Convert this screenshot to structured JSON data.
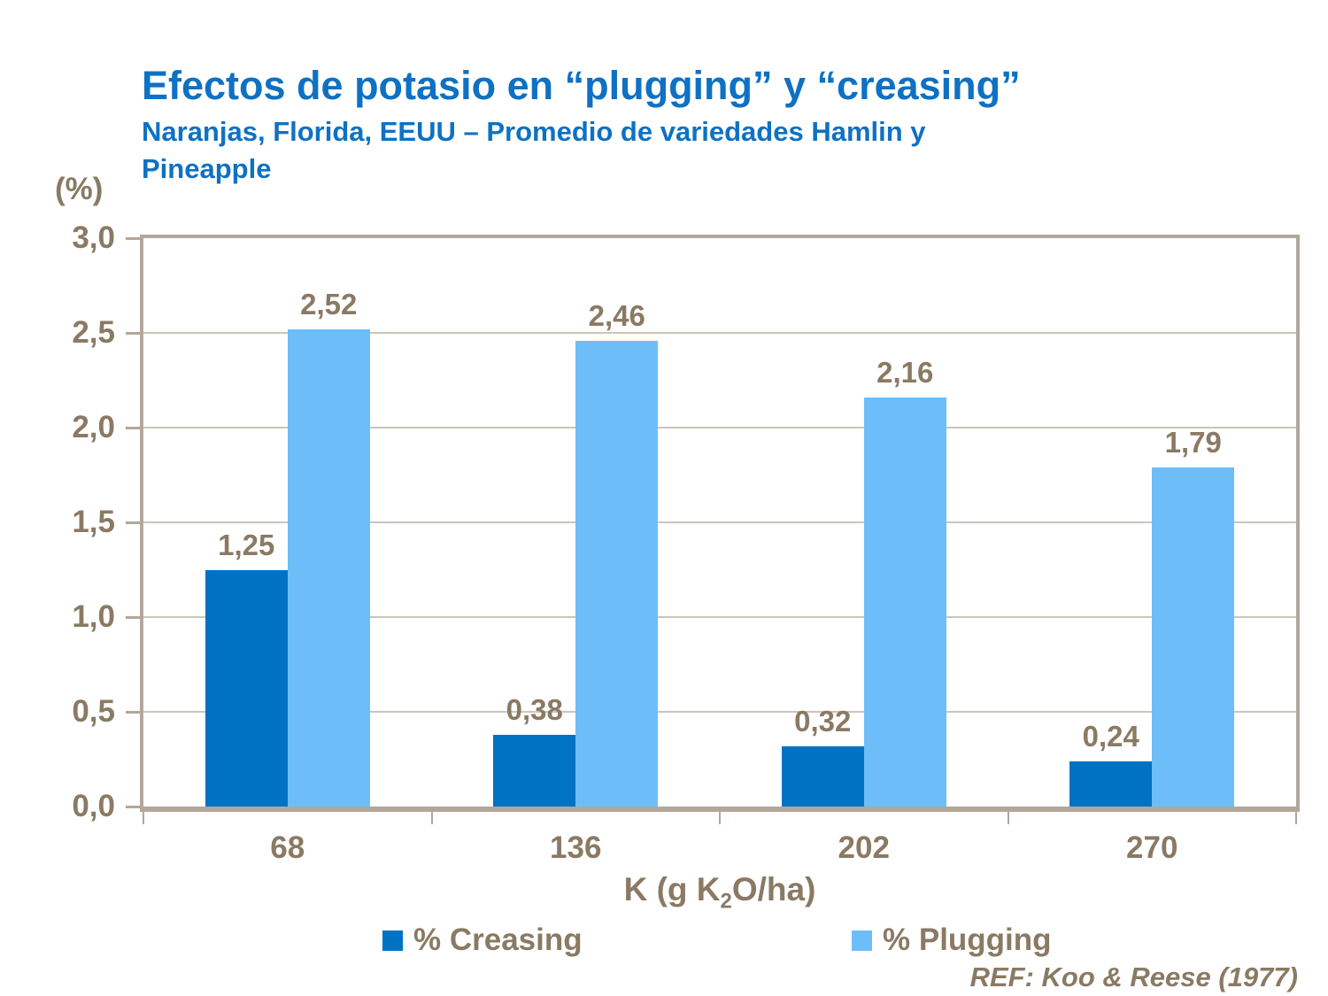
{
  "colors": {
    "title_blue": "#0e71c3",
    "axis_text_brown": "#8a7a64",
    "frame_tan": "#b2a79a",
    "gridline": "#ccc5ba",
    "creasing_bar": "#0072c4",
    "plugging_bar": "#6dbef8"
  },
  "chart_data": {
    "type": "bar",
    "title": "Efectos de potasio en “plugging” y “creasing”",
    "subtitle_lines": [
      "Naranjas, Florida, EEUU – Promedio de variedades Hamlin y",
      "Pineapple"
    ],
    "unit_label": "(%)",
    "categories": [
      "68",
      "136",
      "202",
      "270"
    ],
    "series": [
      {
        "name": "% Creasing",
        "color": "#0072c4",
        "values": [
          1.25,
          0.38,
          0.32,
          0.24
        ],
        "labels": [
          "1,25",
          "0,38",
          "0,32",
          "0,24"
        ]
      },
      {
        "name": "% Plugging",
        "color": "#6dbef8",
        "values": [
          2.52,
          2.46,
          2.16,
          1.79
        ],
        "labels": [
          "2,52",
          "2,46",
          "2,16",
          "1,79"
        ]
      }
    ],
    "ylim": [
      0,
      3
    ],
    "yticks": [
      {
        "v": 3.0,
        "label": "3,0"
      },
      {
        "v": 2.5,
        "label": "2,5"
      },
      {
        "v": 2.0,
        "label": "2,0"
      },
      {
        "v": 1.5,
        "label": "1,5"
      },
      {
        "v": 1.0,
        "label": "1,0"
      },
      {
        "v": 0.5,
        "label": "0,5"
      },
      {
        "v": 0.0,
        "label": "0,0"
      }
    ],
    "grid": "horizontal",
    "legend_position": "bottom",
    "xlabel_parts": {
      "prefix": "K (g K",
      "sub": "2",
      "suffix": "O/ha)"
    },
    "ref": "REF: Koo & Reese (1977)"
  }
}
